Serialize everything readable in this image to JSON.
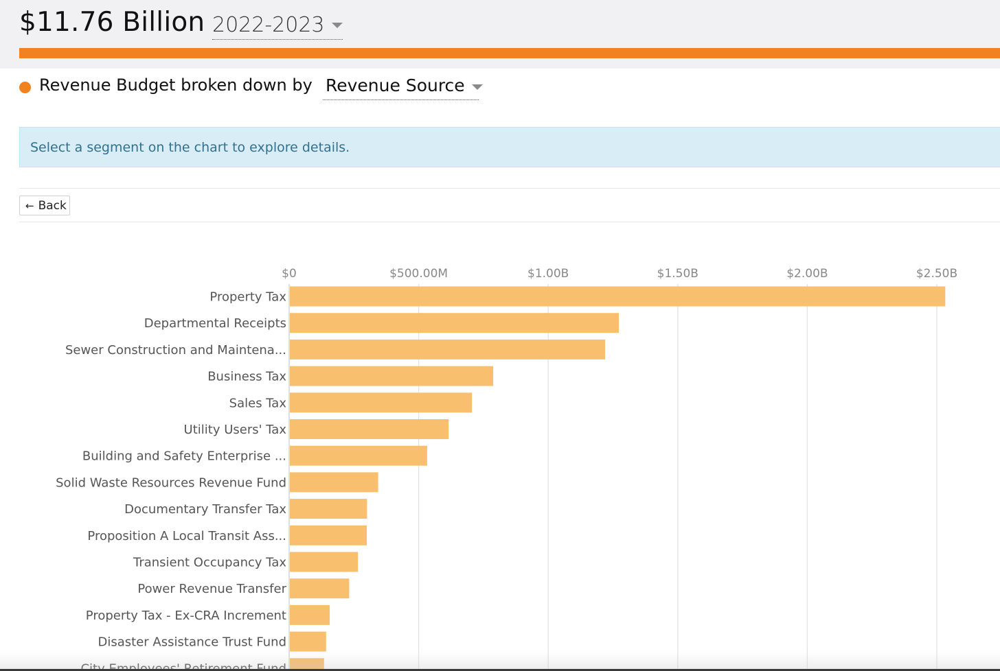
{
  "header": {
    "total": "$11.76 Billion",
    "year_selected": "2022-2023"
  },
  "breakdown": {
    "label": "Revenue Budget broken down by",
    "selected": "Revenue Source"
  },
  "info": {
    "message": "Select a segment on the chart to explore details."
  },
  "back_button": {
    "label": "Back",
    "icon": "arrow-left-icon"
  },
  "colors": {
    "accent": "#f28120",
    "bar": "#f8bf6f",
    "info_bg": "#d9edf7",
    "info_text": "#31708f"
  },
  "chart_data": {
    "type": "bar",
    "orientation": "horizontal",
    "x_ticks": [
      "$0",
      "$500.00M",
      "$1.00B",
      "$1.50B",
      "$2.00B",
      "$2.50B"
    ],
    "x_tick_values": [
      0,
      500,
      1000,
      1500,
      2000,
      2500
    ],
    "xlim": [
      0,
      2500
    ],
    "units": "millions of dollars",
    "grid": true,
    "categories": [
      "Property Tax",
      "Departmental Receipts",
      "Sewer Construction and Maintena...",
      "Business Tax",
      "Sales Tax",
      "Utility Users' Tax",
      "Building and Safety Enterprise ...",
      "Solid Waste Resources Revenue Fund",
      "Documentary Transfer Tax",
      "Proposition A Local Transit Ass...",
      "Transient Occupancy Tax",
      "Power Revenue Transfer",
      "Property Tax - Ex-CRA Increment",
      "Disaster Assistance Trust Fund",
      "City Employees' Retirement Fund"
    ],
    "values": [
      2530,
      1270,
      1217,
      785,
      703,
      613,
      530,
      341,
      298,
      297,
      263,
      229,
      154,
      140,
      132
    ]
  }
}
